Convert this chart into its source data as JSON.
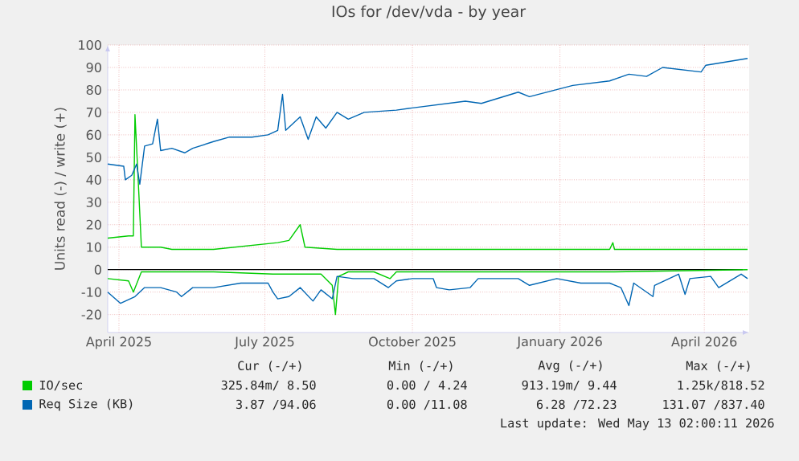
{
  "chart_data": {
    "type": "line",
    "title": "IOs for /dev/vda - by year",
    "ylabel": "Units read (-) / write (+)",
    "xlim": [
      "2025-04-08",
      "2026-05-13"
    ],
    "xticks": [
      {
        "value": "2025-04-15",
        "label": "April 2025"
      },
      {
        "value": "2025-07-15",
        "label": "July 2025"
      },
      {
        "value": "2025-10-15",
        "label": "October 2025"
      },
      {
        "value": "2026-01-15",
        "label": "January 2026"
      },
      {
        "value": "2026-04-15",
        "label": "April 2026"
      }
    ],
    "ylim": [
      -28,
      100
    ],
    "yticks": [
      -20,
      -10,
      0,
      10,
      20,
      30,
      40,
      50,
      60,
      70,
      80,
      90,
      100
    ],
    "grid": true,
    "legend": "bottom",
    "ref_lines": [
      {
        "axis": "y",
        "value": 0,
        "color": "#000000"
      }
    ],
    "series": [
      {
        "name": "IO/sec",
        "color": "#00cc00",
        "x": [
          "2025-04-08",
          "2025-04-21",
          "2025-04-24",
          "2025-04-25",
          "2025-04-27",
          "2025-04-29",
          "2025-05-11",
          "2025-05-18",
          "2025-06-13",
          "2025-07-23",
          "2025-07-30",
          "2025-08-06",
          "2025-08-09",
          "2025-08-29",
          "2025-10-05",
          "2026-02-15",
          "2026-02-17",
          "2026-02-18",
          "2026-05-12"
        ],
        "values": [
          14,
          15,
          15,
          69,
          40,
          10,
          10,
          9,
          9,
          12,
          13,
          20,
          10,
          9,
          9,
          9,
          12,
          9,
          9
        ]
      },
      {
        "color": "#00cc00",
        "x": [
          "2025-04-08",
          "2025-04-21",
          "2025-04-24",
          "2025-04-29",
          "2025-06-13",
          "2025-07-20",
          "2025-08-19",
          "2025-08-26",
          "2025-08-28",
          "2025-08-30",
          "2025-09-05",
          "2025-09-21",
          "2025-10-01",
          "2025-10-05",
          "2026-02-18",
          "2026-05-12"
        ],
        "values": [
          -4,
          -5,
          -10,
          -1,
          -1,
          -2,
          -2,
          -7,
          -20,
          -3,
          -1,
          -1,
          -4,
          -1,
          -1,
          0
        ]
      },
      {
        "name": "Req Size (KB)",
        "color": "#0066b3",
        "x": [
          "2025-04-08",
          "2025-04-18",
          "2025-04-19",
          "2025-04-23",
          "2025-04-26",
          "2025-04-28",
          "2025-05-01",
          "2025-05-06",
          "2025-05-09",
          "2025-05-11",
          "2025-05-18",
          "2025-05-26",
          "2025-05-31",
          "2025-06-13",
          "2025-06-23",
          "2025-07-07",
          "2025-07-17",
          "2025-07-23",
          "2025-07-26",
          "2025-07-28",
          "2025-08-06",
          "2025-08-11",
          "2025-08-16",
          "2025-08-22",
          "2025-08-29",
          "2025-09-05",
          "2025-09-15",
          "2025-10-05",
          "2025-10-15",
          "2025-11-17",
          "2025-11-27",
          "2025-12-20",
          "2025-12-27",
          "2026-01-23",
          "2026-02-15",
          "2026-02-27",
          "2026-03-10",
          "2026-03-20",
          "2026-04-13",
          "2026-04-16",
          "2026-05-12"
        ],
        "values": [
          47,
          46,
          40,
          42,
          47,
          38,
          55,
          56,
          67,
          53,
          54,
          52,
          54,
          57,
          59,
          59,
          60,
          62,
          78,
          62,
          68,
          58,
          68,
          63,
          70,
          67,
          70,
          71,
          72,
          75,
          74,
          79,
          77,
          82,
          84,
          87,
          86,
          90,
          88,
          91,
          94
        ]
      },
      {
        "color": "#0066b3",
        "x": [
          "2025-04-08",
          "2025-04-16",
          "2025-04-25",
          "2025-05-01",
          "2025-05-11",
          "2025-05-21",
          "2025-05-24",
          "2025-05-31",
          "2025-06-13",
          "2025-06-30",
          "2025-07-17",
          "2025-07-20",
          "2025-07-23",
          "2025-07-30",
          "2025-08-06",
          "2025-08-14",
          "2025-08-19",
          "2025-08-26",
          "2025-08-29",
          "2025-09-08",
          "2025-09-21",
          "2025-09-30",
          "2025-10-05",
          "2025-10-15",
          "2025-10-28",
          "2025-10-30",
          "2025-11-07",
          "2025-11-20",
          "2025-11-25",
          "2025-12-20",
          "2025-12-27",
          "2026-01-13",
          "2026-01-28",
          "2026-02-15",
          "2026-02-22",
          "2026-02-27",
          "2026-03-02",
          "2026-03-14",
          "2026-03-15",
          "2026-03-30",
          "2026-04-03",
          "2026-04-06",
          "2026-04-19",
          "2026-04-24",
          "2026-05-08",
          "2026-05-12"
        ],
        "values": [
          -10,
          -15,
          -12,
          -8,
          -8,
          -10,
          -12,
          -8,
          -8,
          -6,
          -6,
          -10,
          -13,
          -12,
          -8,
          -14,
          -9,
          -13,
          -3,
          -4,
          -4,
          -8,
          -5,
          -4,
          -4,
          -8,
          -9,
          -8,
          -4,
          -4,
          -7,
          -4,
          -6,
          -6,
          -8,
          -16,
          -6,
          -12,
          -7,
          -2,
          -11,
          -4,
          -3,
          -8,
          -2,
          -4
        ]
      }
    ],
    "annotations": [
      "Cur (-/+)",
      "Min (-/+)",
      "Avg (-/+)",
      "Max (-/+)",
      "325.84m/ 8.50",
      "0.00 / 4.24",
      "913.19m/ 9.44",
      "1.25k/818.52",
      "3.87 /94.06",
      "0.00 /11.08",
      "6.28 /72.23",
      "131.07 /837.40",
      "Last update: Wed May 13 02:00:11 2026"
    ]
  }
}
